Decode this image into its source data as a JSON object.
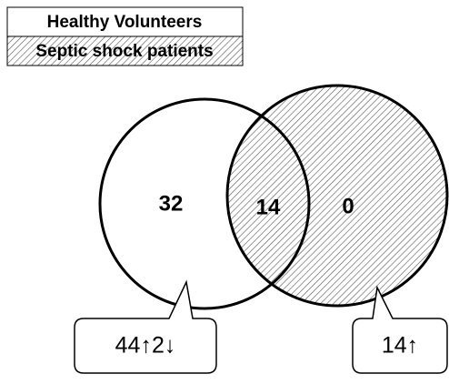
{
  "legend": {
    "items": [
      "Healthy Volunteers",
      "Septic shock patients"
    ]
  },
  "regions": {
    "left": "32",
    "intersection": "14",
    "right": "0"
  },
  "callouts": {
    "left": "44↑2↓",
    "right": "14↑"
  }
}
